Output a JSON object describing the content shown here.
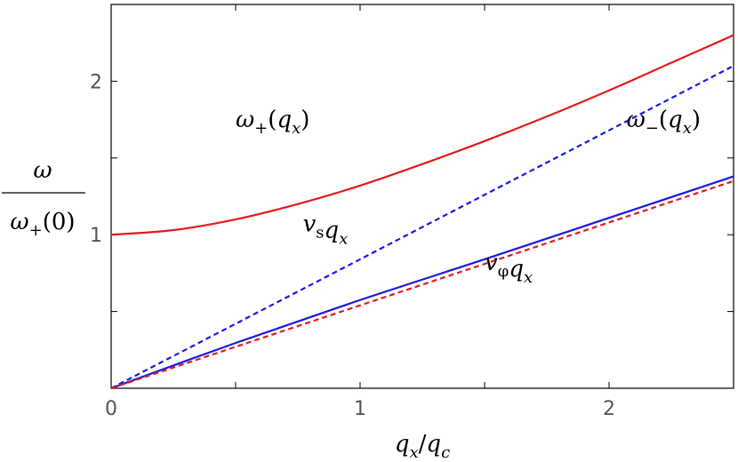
{
  "chart_data": {
    "type": "line",
    "xlabel": "q_x / q_c",
    "ylabel": "ω / ω+(0)",
    "xlim": [
      0,
      2.5
    ],
    "ylim": [
      0,
      2.5
    ],
    "grid": false,
    "x_ticks": [
      {
        "value": 0,
        "label": "0"
      },
      {
        "value": 1,
        "label": "1"
      },
      {
        "value": 2,
        "label": "2"
      }
    ],
    "x_minor_ticks": [
      0.5,
      1.5
    ],
    "y_ticks": [
      {
        "value": 1,
        "label": "1"
      },
      {
        "value": 2,
        "label": "2"
      }
    ],
    "y_minor_ticks": [
      0.5,
      1.5
    ],
    "series": [
      {
        "name": "ω+(qx)",
        "color": "#e41a1c",
        "style": "solid",
        "x": [
          0,
          0.25,
          0.5,
          0.75,
          1.0,
          1.25,
          1.5,
          1.75,
          2.0,
          2.25,
          2.5
        ],
        "y": [
          1.0,
          1.03,
          1.1,
          1.2,
          1.32,
          1.46,
          1.61,
          1.77,
          1.94,
          2.12,
          2.3
        ]
      },
      {
        "name": "v_s q_x",
        "color": "#1a1ae4",
        "style": "dashed",
        "x": [
          0,
          2.5
        ],
        "y": [
          0,
          2.1
        ]
      },
      {
        "name": "ω−(qx)",
        "color": "#1a1ae4",
        "style": "solid",
        "x": [
          0,
          0.5,
          1.0,
          1.5,
          2.0,
          2.5
        ],
        "y": [
          0,
          0.295,
          0.575,
          0.84,
          1.11,
          1.38
        ]
      },
      {
        "name": "v_φ q_x",
        "color": "#e41a1c",
        "style": "dashed",
        "x": [
          0,
          2.5
        ],
        "y": [
          0,
          1.35
        ]
      }
    ],
    "annotations": {
      "omega_plus": {
        "base": "ω",
        "sub": "+",
        "arg": "q",
        "argsub": "x",
        "x": 0.5,
        "y": 1.7
      },
      "omega_minus": {
        "base": "ω",
        "sub": "−",
        "arg": "q",
        "argsub": "x",
        "x": 2.07,
        "y": 1.7
      },
      "vs": {
        "base": "v",
        "sub": "s",
        "arg": "q",
        "argsub": "x",
        "x": 0.77,
        "y": 1.02
      },
      "vphi": {
        "base": "v",
        "sub": "φ",
        "arg": "q",
        "argsub": "x",
        "x": 1.5,
        "y": 0.77
      }
    },
    "ylabel_parts": {
      "num": "ω",
      "den_base": "ω",
      "den_sub": "+",
      "den_arg": "(0)"
    },
    "xlabel_parts": {
      "a": "q",
      "a_sub": "x",
      "slash": "/",
      "b": "q",
      "b_sub": "c"
    }
  }
}
